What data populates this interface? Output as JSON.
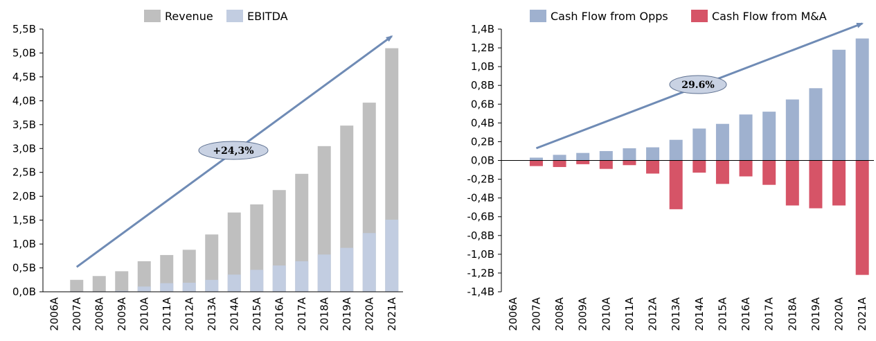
{
  "chart_data": [
    {
      "type": "bar",
      "stacking": "overlay",
      "categories": [
        "2006A",
        "2007A",
        "2008A",
        "2009A",
        "2010A",
        "2011A",
        "2012A",
        "2013A",
        "2014A",
        "2015A",
        "2016A",
        "2017A",
        "2018A",
        "2019A",
        "2020A",
        "2021A"
      ],
      "series": [
        {
          "name": "Revenue",
          "color": "#bfbfbf",
          "values": [
            0,
            0.25,
            0.33,
            0.43,
            0.64,
            0.77,
            0.88,
            1.2,
            1.66,
            1.83,
            2.13,
            2.47,
            3.05,
            3.48,
            3.96,
            5.1
          ]
        },
        {
          "name": "EBITDA",
          "color": "#c2cde1",
          "values": [
            0,
            0.01,
            0.01,
            0.02,
            0.11,
            0.18,
            0.19,
            0.25,
            0.36,
            0.46,
            0.55,
            0.64,
            0.78,
            0.92,
            1.23,
            1.51
          ]
        }
      ],
      "ylim": [
        0,
        5.5
      ],
      "yticks": [
        "0,0B",
        "0,5B",
        "1,0B",
        "1,5B",
        "2,0B",
        "2,5B",
        "3,0B",
        "3,5B",
        "4,0B",
        "4,5B",
        "5,0B",
        "5,5B"
      ],
      "annotation": {
        "label": "+24,3%",
        "trend_from": "2007A",
        "trend_to": "2021A",
        "trend_start_value": 0.52,
        "trend_end_value": 5.35
      },
      "legend": "top-center",
      "title": "",
      "xlabel": "",
      "ylabel": ""
    },
    {
      "type": "bar",
      "stacking": "diverging",
      "categories": [
        "2006A",
        "2007A",
        "2008A",
        "2009A",
        "2010A",
        "2011A",
        "2012A",
        "2013A",
        "2014A",
        "2015A",
        "2016A",
        "2017A",
        "2018A",
        "2019A",
        "2020A",
        "2021A"
      ],
      "series": [
        {
          "name": "Cash Flow from Opps",
          "color": "#9fb1cf",
          "values": [
            0,
            0.03,
            0.06,
            0.08,
            0.1,
            0.13,
            0.14,
            0.22,
            0.34,
            0.39,
            0.49,
            0.52,
            0.65,
            0.77,
            1.18,
            1.3
          ]
        },
        {
          "name": "Cash Flow from M&A",
          "color": "#d65467",
          "values": [
            0,
            -0.06,
            -0.07,
            -0.04,
            -0.09,
            -0.05,
            -0.14,
            -0.52,
            -0.13,
            -0.25,
            -0.17,
            -0.26,
            -0.48,
            -0.51,
            -0.48,
            -1.22
          ]
        }
      ],
      "ylim": [
        -1.4,
        1.4
      ],
      "yticks": [
        "-1,4B",
        "-1,2B",
        "-1,0B",
        "-0,8B",
        "-0,6B",
        "-0,4B",
        "-0,2B",
        "0,0B",
        "0,2B",
        "0,4B",
        "0,6B",
        "0,8B",
        "1,0B",
        "1,2B",
        "1,4B"
      ],
      "annotation": {
        "label": "29.6%",
        "trend_from": "2007A",
        "trend_to": "2021A",
        "trend_start_value": 0.13,
        "trend_end_value": 1.46
      },
      "legend": "top-center",
      "title": "",
      "xlabel": "",
      "ylabel": ""
    }
  ]
}
